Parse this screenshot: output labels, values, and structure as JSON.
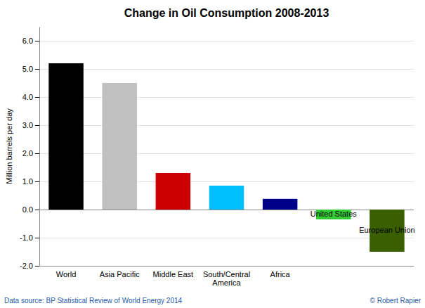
{
  "chart_data": {
    "type": "bar",
    "title": "Change in Oil Consumption 2008-2013",
    "categories": [
      "World",
      "Asia Pacific",
      "Middle East",
      "South/Central\nAmerica",
      "Africa",
      null,
      null
    ],
    "values": [
      5.2,
      4.5,
      1.3,
      0.85,
      0.38,
      -0.35,
      -1.5
    ],
    "colors": [
      "#000000",
      "#c0c0c0",
      "#cc0000",
      "#00bfff",
      "#00008b",
      "#32cd32",
      "#3a5f00"
    ],
    "annotations": [
      null,
      null,
      null,
      null,
      null,
      "United States",
      "European Union"
    ],
    "ylabel": "Million barrels per day",
    "ylim": [
      -2.0,
      6.5
    ],
    "yticks": [
      {
        "value": -2.0,
        "label": "-2.0"
      },
      {
        "value": -1.0,
        "label": "-1.0"
      },
      {
        "value": 0.0,
        "label": "0.0"
      },
      {
        "value": 1.0,
        "label": "1.0"
      },
      {
        "value": 2.0,
        "label": "2.0"
      },
      {
        "value": 3.0,
        "label": "3.0"
      },
      {
        "value": 4.0,
        "label": "4.0"
      },
      {
        "value": 5.0,
        "label": "5.0"
      },
      {
        "value": 6.0,
        "label": "6.0"
      }
    ],
    "grid": true,
    "source": "Data source: BP Statistical Review of World Energy 2014",
    "credit": "© Robert Rapier"
  }
}
